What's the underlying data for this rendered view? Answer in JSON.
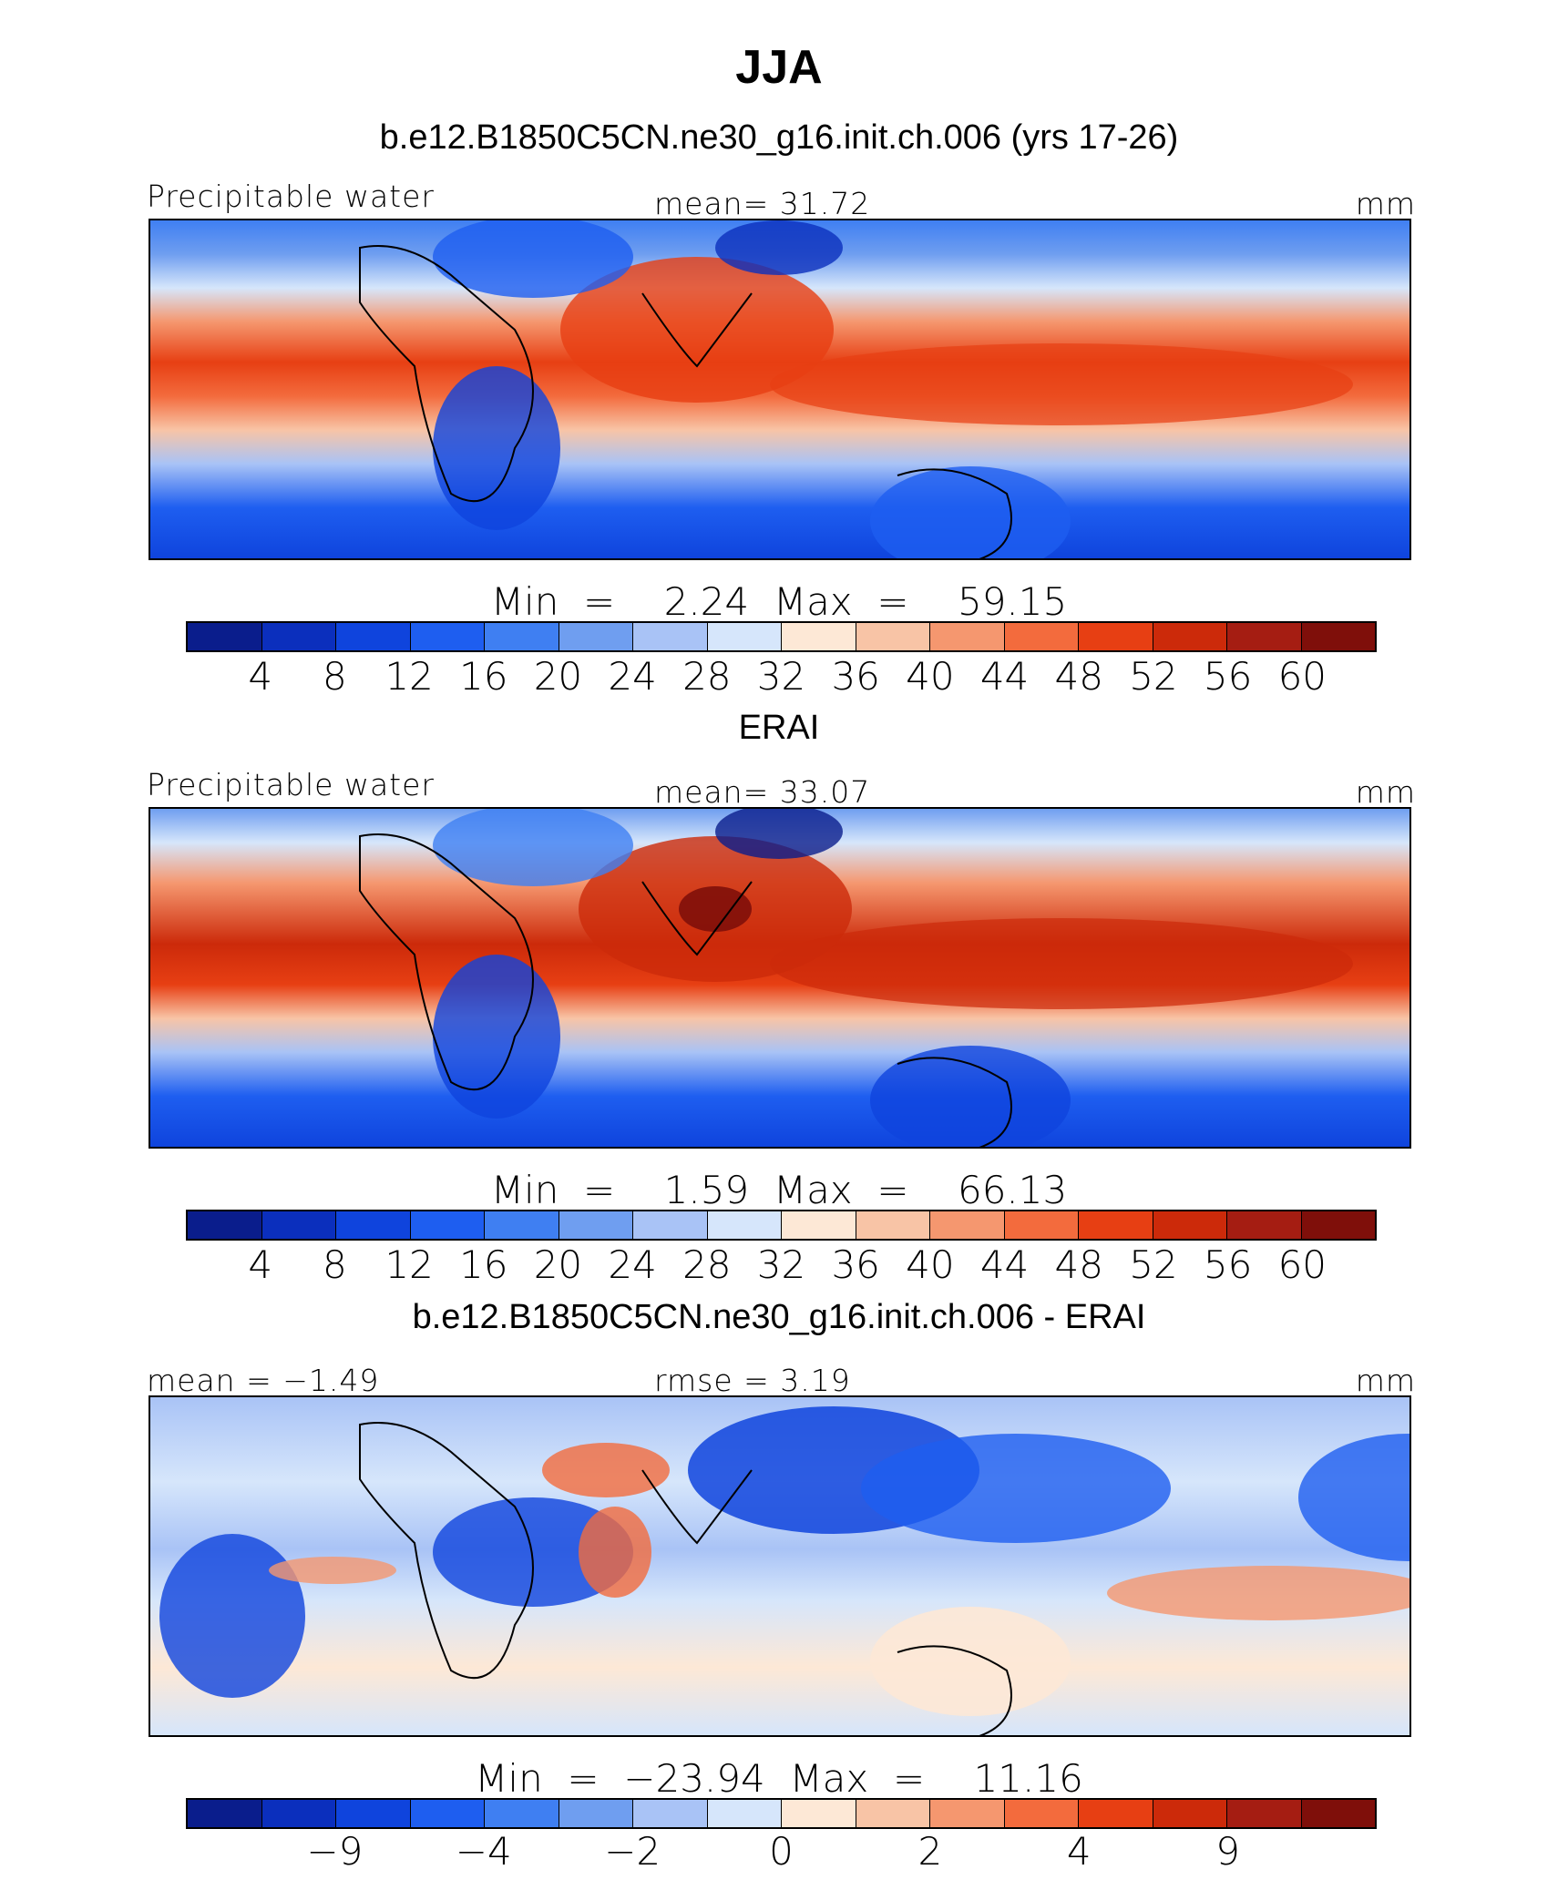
{
  "title": "JJA",
  "units": "mm",
  "colors": [
    "#0a1d8c",
    "#0b2fbd",
    "#0f44dd",
    "#1e5ef0",
    "#3f7ff2",
    "#6f9ef0",
    "#a9c3f6",
    "#d6e6fb",
    "#fde8d6",
    "#f8c4a6",
    "#f5976f",
    "#f36b3d",
    "#e73f13",
    "#cc2a0a",
    "#a51d12",
    "#7f0f0a"
  ],
  "panels": [
    {
      "title": "b.e12.B1850C5CN.ne30_g16.init.ch.006 (yrs 17-26)",
      "left_label": "Precipitable water",
      "center_label": "mean=   31.72",
      "right_label": "mm",
      "min_label": "Min",
      "min_value": "2.24",
      "max_label": "Max",
      "max_value": "59.15",
      "ticks": [
        "4",
        "8",
        "12",
        "16",
        "20",
        "24",
        "28",
        "32",
        "36",
        "40",
        "44",
        "48",
        "52",
        "56",
        "60"
      ]
    },
    {
      "title": "ERAI",
      "left_label": "Precipitable water",
      "center_label": "mean=   33.07",
      "right_label": "mm",
      "min_label": "Min",
      "min_value": "1.59",
      "max_label": "Max",
      "max_value": "66.13",
      "ticks": [
        "4",
        "8",
        "12",
        "16",
        "20",
        "24",
        "28",
        "32",
        "36",
        "40",
        "44",
        "48",
        "52",
        "56",
        "60"
      ]
    },
    {
      "title": "b.e12.B1850C5CN.ne30_g16.init.ch.006 - ERAI",
      "left_label": "mean =  −1.49",
      "center_label": "rmse =    3.19",
      "right_label": "mm",
      "min_label": "Min",
      "min_value": "−23.94",
      "max_label": "Max",
      "max_value": "11.16",
      "ticks": [
        "",
        "−9",
        "",
        "−4",
        "",
        "−2",
        "",
        "0",
        "",
        "2",
        "",
        "4",
        "",
        "9",
        ""
      ]
    }
  ],
  "chart_data": [
    {
      "type": "heatmap",
      "title": "b.e12.B1850C5CN.ne30_g16.init.ch.006 (yrs 17-26)",
      "variable": "Precipitable water",
      "units": "mm",
      "mean": 31.72,
      "min": 2.24,
      "max": 59.15,
      "contour_levels": [
        4,
        8,
        12,
        16,
        20,
        24,
        28,
        32,
        36,
        40,
        44,
        48,
        52,
        56,
        60
      ]
    },
    {
      "type": "heatmap",
      "title": "ERAI",
      "variable": "Precipitable water",
      "units": "mm",
      "mean": 33.07,
      "min": 1.59,
      "max": 66.13,
      "contour_levels": [
        4,
        8,
        12,
        16,
        20,
        24,
        28,
        32,
        36,
        40,
        44,
        48,
        52,
        56,
        60
      ]
    },
    {
      "type": "heatmap",
      "title": "b.e12.B1850C5CN.ne30_g16.init.ch.006 - ERAI",
      "units": "mm",
      "mean": -1.49,
      "rmse": 3.19,
      "min": -23.94,
      "max": 11.16,
      "contour_levels_labeled": [
        -9,
        -4,
        -2,
        0,
        2,
        4,
        9
      ]
    }
  ]
}
